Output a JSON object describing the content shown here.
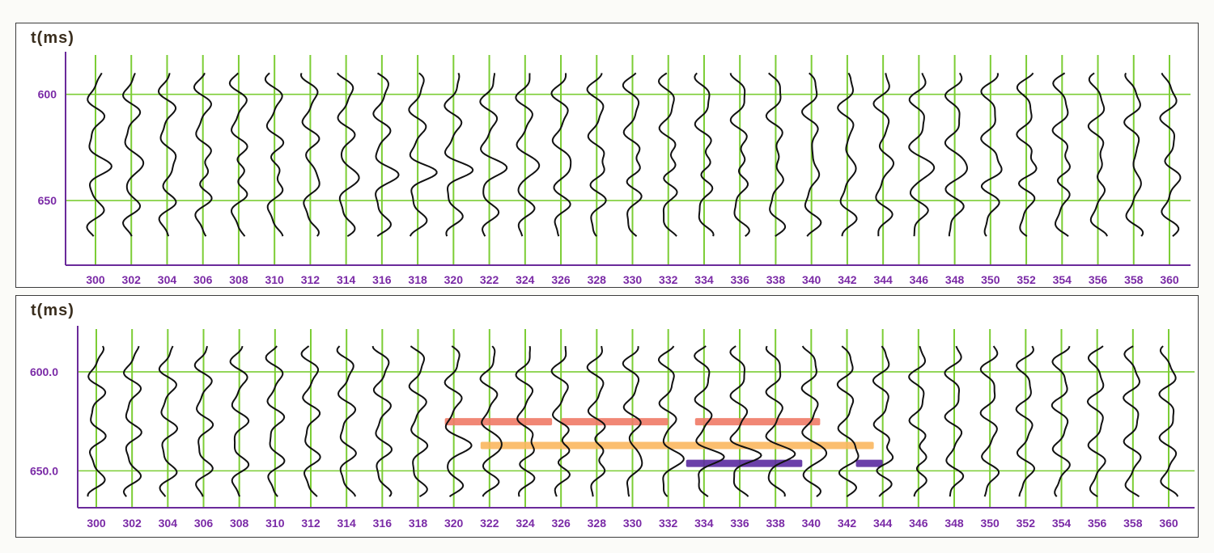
{
  "chart_data": [
    {
      "type": "line",
      "panel": "top",
      "ylabel": "t(ms)",
      "x_tick_labels": [
        "300",
        "302",
        "304",
        "306",
        "308",
        "310",
        "312",
        "314",
        "316",
        "318",
        "320",
        "322",
        "324",
        "326",
        "328",
        "330",
        "332",
        "334",
        "336",
        "338",
        "340",
        "342",
        "344",
        "346",
        "348",
        "350",
        "352",
        "354",
        "356",
        "358",
        "360"
      ],
      "y_tick_labels": [
        "600",
        "650"
      ],
      "x": [
        300,
        302,
        304,
        306,
        308,
        310,
        312,
        314,
        316,
        318,
        320,
        322,
        324,
        326,
        328,
        330,
        332,
        334,
        336,
        338,
        340,
        342,
        344,
        346,
        348,
        350,
        352,
        354,
        356,
        358,
        360
      ],
      "ylim": [
        583,
        677
      ],
      "grid": true,
      "trace_color": "#111111",
      "grid_color": "#7ccd35",
      "axis_color": "#6a2a9a",
      "tick_label_color": "#7a2aa6",
      "highlights": []
    },
    {
      "type": "line",
      "panel": "bottom",
      "ylabel": "t(ms)",
      "x_tick_labels": [
        "300",
        "302",
        "304",
        "306",
        "308",
        "310",
        "312",
        "314",
        "316",
        "318",
        "320",
        "322",
        "324",
        "326",
        "328",
        "330",
        "332",
        "334",
        "336",
        "338",
        "340",
        "342",
        "344",
        "346",
        "348",
        "350",
        "352",
        "354",
        "356",
        "358",
        "360"
      ],
      "y_tick_labels": [
        "600.0",
        "650.0"
      ],
      "x": [
        300,
        302,
        304,
        306,
        308,
        310,
        312,
        314,
        316,
        318,
        320,
        322,
        324,
        326,
        328,
        330,
        332,
        334,
        336,
        338,
        340,
        342,
        344,
        346,
        348,
        350,
        352,
        354,
        356,
        358,
        360
      ],
      "ylim": [
        580,
        667
      ],
      "grid": true,
      "trace_color": "#111111",
      "grid_color": "#7ccd35",
      "axis_color": "#6a2a9a",
      "tick_label_color": "#7a2aa6",
      "highlights": [
        {
          "color": "#f07a66",
          "t": 625,
          "x_ranges": [
            [
              319.5,
              325.5
            ],
            [
              326,
              332
            ],
            [
              333.5,
              340.5
            ]
          ]
        },
        {
          "color": "#fbb75f",
          "t": 637,
          "x_ranges": [
            [
              321.5,
              343.5
            ]
          ]
        },
        {
          "color": "#5a2aa0",
          "t": 646,
          "x_ranges": [
            [
              333,
              339.5
            ],
            [
              342.5,
              344
            ]
          ]
        }
      ]
    }
  ]
}
